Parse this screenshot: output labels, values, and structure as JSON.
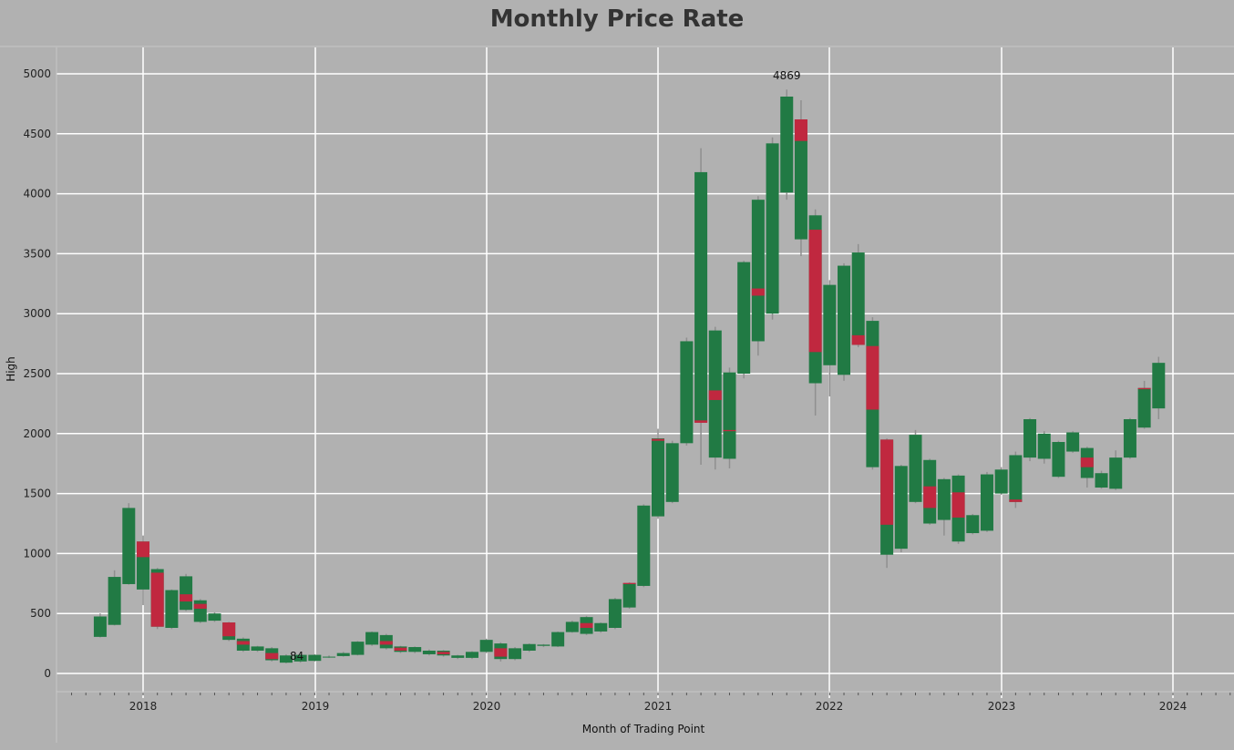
{
  "chart_data": {
    "type": "candlestick",
    "title": "Monthly Price Rate",
    "xlabel": "Month of Trading Point",
    "ylabel": "High",
    "ylim": [
      0,
      5000
    ],
    "yticks": [
      0,
      500,
      1000,
      1500,
      2000,
      2500,
      3000,
      3500,
      4000,
      4500,
      5000
    ],
    "xticks": [
      "2018",
      "2019",
      "2020",
      "2021",
      "2022",
      "2023",
      "2024"
    ],
    "grid": true,
    "colors": {
      "background": "#b1b1b1",
      "grid": "#ffffff",
      "up": "#217a44",
      "down": "#c0283f",
      "wick": "#8f8f8f"
    },
    "annotations": [
      {
        "date": "2021-10",
        "value": 4869,
        "label": "4869"
      },
      {
        "date": "2018-11",
        "value": 84,
        "label": "84"
      }
    ],
    "candles": [
      {
        "date": "2017-10",
        "low": 300,
        "bottom": 305,
        "top": 475,
        "high": 500
      },
      {
        "date": "2017-11",
        "low": 400,
        "bottom": 405,
        "top": 805,
        "high": 860
      },
      {
        "date": "2017-12",
        "low": 740,
        "bottom": 745,
        "top": 1380,
        "high": 1420
      },
      {
        "date": "2018-01",
        "low": 570,
        "bottom": 700,
        "top": 1100,
        "high": 1150,
        "red_low": 970,
        "red_high": 1100
      },
      {
        "date": "2018-02",
        "low": 370,
        "bottom": 390,
        "top": 870,
        "high": 880,
        "red_low": 390,
        "red_high": 840
      },
      {
        "date": "2018-03",
        "low": 370,
        "bottom": 380,
        "top": 695,
        "high": 700
      },
      {
        "date": "2018-04",
        "low": 520,
        "bottom": 530,
        "top": 810,
        "high": 830,
        "red_low": 600,
        "red_high": 660
      },
      {
        "date": "2018-05",
        "low": 420,
        "bottom": 430,
        "top": 610,
        "high": 620,
        "red_low": 540,
        "red_high": 580
      },
      {
        "date": "2018-06",
        "low": 430,
        "bottom": 440,
        "top": 500,
        "high": 510
      },
      {
        "date": "2018-07",
        "low": 270,
        "bottom": 280,
        "top": 425,
        "high": 430,
        "red_low": 310,
        "red_high": 425
      },
      {
        "date": "2018-08",
        "low": 180,
        "bottom": 190,
        "top": 290,
        "high": 300,
        "red_low": 240,
        "red_high": 270
      },
      {
        "date": "2018-09",
        "low": 180,
        "bottom": 190,
        "top": 225,
        "high": 230
      },
      {
        "date": "2018-10",
        "low": 100,
        "bottom": 110,
        "top": 210,
        "high": 220,
        "red_low": 120,
        "red_high": 170
      },
      {
        "date": "2018-11",
        "low": 84,
        "bottom": 90,
        "top": 150,
        "high": 160
      },
      {
        "date": "2018-12",
        "low": 90,
        "bottom": 100,
        "top": 155,
        "high": 160
      },
      {
        "date": "2019-01",
        "low": 100,
        "bottom": 105,
        "top": 155,
        "high": 160
      },
      {
        "date": "2019-02",
        "low": 130,
        "bottom": 135,
        "top": 140,
        "high": 150
      },
      {
        "date": "2019-03",
        "low": 140,
        "bottom": 145,
        "top": 170,
        "high": 180
      },
      {
        "date": "2019-04",
        "low": 150,
        "bottom": 155,
        "top": 265,
        "high": 270
      },
      {
        "date": "2019-05",
        "low": 230,
        "bottom": 240,
        "top": 345,
        "high": 350
      },
      {
        "date": "2019-06",
        "low": 200,
        "bottom": 210,
        "top": 320,
        "high": 330,
        "red_low": 240,
        "red_high": 270
      },
      {
        "date": "2019-07",
        "low": 170,
        "bottom": 180,
        "top": 225,
        "high": 230,
        "red_low": 190,
        "red_high": 215
      },
      {
        "date": "2019-08",
        "low": 170,
        "bottom": 180,
        "top": 220,
        "high": 225
      },
      {
        "date": "2019-09",
        "low": 150,
        "bottom": 160,
        "top": 190,
        "high": 200
      },
      {
        "date": "2019-10",
        "low": 140,
        "bottom": 150,
        "top": 190,
        "high": 195,
        "red_low": 160,
        "red_high": 180
      },
      {
        "date": "2019-11",
        "low": 120,
        "bottom": 130,
        "top": 150,
        "high": 155
      },
      {
        "date": "2019-12",
        "low": 120,
        "bottom": 130,
        "top": 180,
        "high": 185
      },
      {
        "date": "2020-01",
        "low": 170,
        "bottom": 180,
        "top": 280,
        "high": 290
      },
      {
        "date": "2020-02",
        "low": 100,
        "bottom": 120,
        "top": 250,
        "high": 260,
        "red_low": 140,
        "red_high": 210
      },
      {
        "date": "2020-03",
        "low": 110,
        "bottom": 120,
        "top": 210,
        "high": 220
      },
      {
        "date": "2020-04",
        "low": 180,
        "bottom": 190,
        "top": 245,
        "high": 250
      },
      {
        "date": "2020-05",
        "low": 220,
        "bottom": 230,
        "top": 240,
        "high": 245
      },
      {
        "date": "2020-06",
        "low": 220,
        "bottom": 225,
        "top": 345,
        "high": 350
      },
      {
        "date": "2020-07",
        "low": 340,
        "bottom": 345,
        "top": 430,
        "high": 440
      },
      {
        "date": "2020-08",
        "low": 320,
        "bottom": 330,
        "top": 470,
        "high": 480,
        "red_low": 380,
        "red_high": 420
      },
      {
        "date": "2020-09",
        "low": 340,
        "bottom": 350,
        "top": 420,
        "high": 425
      },
      {
        "date": "2020-10",
        "low": 370,
        "bottom": 380,
        "top": 620,
        "high": 630
      },
      {
        "date": "2020-11",
        "low": 540,
        "bottom": 550,
        "top": 750,
        "high": 760,
        "red_low": 745,
        "red_high": 755
      },
      {
        "date": "2020-12",
        "low": 720,
        "bottom": 730,
        "top": 1400,
        "high": 1410
      },
      {
        "date": "2021-01",
        "low": 1290,
        "bottom": 1310,
        "top": 1960,
        "high": 2040,
        "red_low": 1940,
        "red_high": 1955
      },
      {
        "date": "2021-02",
        "low": 1420,
        "bottom": 1430,
        "top": 1920,
        "high": 1940
      },
      {
        "date": "2021-03",
        "low": 1900,
        "bottom": 1920,
        "top": 2770,
        "high": 2800
      },
      {
        "date": "2021-04",
        "low": 1740,
        "bottom": 2100,
        "top": 4180,
        "high": 4380,
        "red_low": 2090,
        "red_high": 2110
      },
      {
        "date": "2021-05",
        "low": 1700,
        "bottom": 1800,
        "top": 2860,
        "high": 2890,
        "red_low": 2280,
        "red_high": 2360
      },
      {
        "date": "2021-06",
        "low": 1710,
        "bottom": 1790,
        "top": 2510,
        "high": 2550,
        "red_low": 2020,
        "red_high": 2030
      },
      {
        "date": "2021-07",
        "low": 2460,
        "bottom": 2500,
        "top": 3430,
        "high": 3440
      },
      {
        "date": "2021-08",
        "low": 2650,
        "bottom": 2770,
        "top": 3950,
        "high": 3980,
        "red_low": 3150,
        "red_high": 3210
      },
      {
        "date": "2021-09",
        "low": 2950,
        "bottom": 3000,
        "top": 4420,
        "high": 4470
      },
      {
        "date": "2021-10",
        "low": 3950,
        "bottom": 4010,
        "top": 4810,
        "high": 4869
      },
      {
        "date": "2021-11",
        "low": 3480,
        "bottom": 3620,
        "top": 4620,
        "high": 4780,
        "red_low": 4440,
        "red_high": 4620
      },
      {
        "date": "2021-12",
        "low": 2150,
        "bottom": 2420,
        "top": 3820,
        "high": 3870,
        "red_low": 2680,
        "red_high": 3700
      },
      {
        "date": "2022-01",
        "low": 2310,
        "bottom": 2570,
        "top": 3240,
        "high": 3280
      },
      {
        "date": "2022-02",
        "low": 2440,
        "bottom": 2490,
        "top": 3400,
        "high": 3420
      },
      {
        "date": "2022-03",
        "low": 2720,
        "bottom": 2740,
        "top": 3510,
        "high": 3580,
        "red_low": 2740,
        "red_high": 2820
      },
      {
        "date": "2022-04",
        "low": 1700,
        "bottom": 1720,
        "top": 2940,
        "high": 2970,
        "red_low": 2200,
        "red_high": 2730
      },
      {
        "date": "2022-05",
        "low": 880,
        "bottom": 990,
        "top": 1950,
        "high": 1960,
        "red_low": 1240,
        "red_high": 1950
      },
      {
        "date": "2022-06",
        "low": 1010,
        "bottom": 1040,
        "top": 1730,
        "high": 1740
      },
      {
        "date": "2022-07",
        "low": 1420,
        "bottom": 1430,
        "top": 1990,
        "high": 2030
      },
      {
        "date": "2022-08",
        "low": 1240,
        "bottom": 1250,
        "top": 1780,
        "high": 1790,
        "red_low": 1380,
        "red_high": 1560
      },
      {
        "date": "2022-09",
        "low": 1150,
        "bottom": 1280,
        "top": 1620,
        "high": 1630
      },
      {
        "date": "2022-10",
        "low": 1080,
        "bottom": 1100,
        "top": 1650,
        "high": 1660,
        "red_low": 1300,
        "red_high": 1510
      },
      {
        "date": "2022-11",
        "low": 1160,
        "bottom": 1170,
        "top": 1320,
        "high": 1330
      },
      {
        "date": "2022-12",
        "low": 1180,
        "bottom": 1190,
        "top": 1660,
        "high": 1680
      },
      {
        "date": "2023-01",
        "low": 1490,
        "bottom": 1500,
        "top": 1700,
        "high": 1720
      },
      {
        "date": "2023-02",
        "low": 1380,
        "bottom": 1430,
        "top": 1820,
        "high": 1850,
        "red_low": 1430,
        "red_high": 1450
      },
      {
        "date": "2023-03",
        "low": 1770,
        "bottom": 1800,
        "top": 2120,
        "high": 2130
      },
      {
        "date": "2023-04",
        "low": 1750,
        "bottom": 1790,
        "top": 2000,
        "high": 2020
      },
      {
        "date": "2023-05",
        "low": 1630,
        "bottom": 1640,
        "top": 1930,
        "high": 1940
      },
      {
        "date": "2023-06",
        "low": 1840,
        "bottom": 1850,
        "top": 2010,
        "high": 2020
      },
      {
        "date": "2023-07",
        "low": 1550,
        "bottom": 1630,
        "top": 1880,
        "high": 1890,
        "red_low": 1720,
        "red_high": 1800
      },
      {
        "date": "2023-08",
        "low": 1540,
        "bottom": 1550,
        "top": 1670,
        "high": 1690
      },
      {
        "date": "2023-09",
        "low": 1530,
        "bottom": 1540,
        "top": 1800,
        "high": 1860
      },
      {
        "date": "2023-10",
        "low": 1790,
        "bottom": 1800,
        "top": 2120,
        "high": 2130
      },
      {
        "date": "2023-11",
        "low": 2040,
        "bottom": 2050,
        "top": 2380,
        "high": 2440,
        "red_low": 2370,
        "red_high": 2380
      },
      {
        "date": "2023-12",
        "low": 2120,
        "bottom": 2210,
        "top": 2590,
        "high": 2640
      }
    ]
  }
}
